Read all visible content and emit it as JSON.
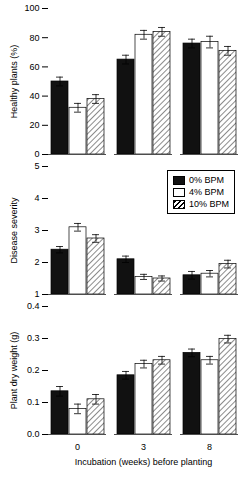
{
  "chart_data": [
    {
      "type": "bar",
      "categories": [
        "0",
        "3",
        "8"
      ],
      "ylabel": "Healthy plants (%)",
      "ylim": [
        0,
        100
      ],
      "yticks": [
        0,
        20,
        40,
        60,
        80,
        100
      ],
      "tick_labels": "y",
      "series": [
        {
          "name": "0% BPM",
          "color": "#111111",
          "values": [
            50,
            65,
            76
          ],
          "errors": [
            3,
            3,
            3
          ]
        },
        {
          "name": "4% BPM",
          "color": "#ffffff",
          "values": [
            32,
            82,
            77
          ],
          "errors": [
            3,
            3,
            4
          ]
        },
        {
          "name": "10% BPM",
          "color": "#ffffff",
          "values": [
            38,
            84,
            71
          ],
          "errors": [
            3,
            3,
            3
          ]
        }
      ]
    },
    {
      "type": "bar",
      "categories": [
        "0",
        "3",
        "8"
      ],
      "ylabel": "Disease severity",
      "ylim": [
        1,
        5
      ],
      "yticks": [
        1,
        2,
        3,
        4,
        5
      ],
      "tick_labels": "y",
      "legend": "upper right",
      "series": [
        {
          "name": "0% BPM",
          "color": "#111111",
          "values": [
            2.4,
            2.1,
            1.6
          ],
          "errors": [
            0.1,
            0.1,
            0.12
          ]
        },
        {
          "name": "4% BPM",
          "color": "#ffffff",
          "values": [
            3.1,
            1.55,
            1.65
          ],
          "errors": [
            0.12,
            0.08,
            0.1
          ]
        },
        {
          "name": "10% BPM",
          "color": "#ffffff",
          "values": [
            2.75,
            1.5,
            1.95
          ],
          "errors": [
            0.12,
            0.08,
            0.12
          ]
        }
      ]
    },
    {
      "type": "bar",
      "categories": [
        "0",
        "3",
        "8"
      ],
      "xlabel": "Incubation (weeks) before planting",
      "ylabel": "Plant dry weight (g)",
      "ylim": [
        0.0,
        0.4
      ],
      "yticks": [
        {
          "value": 0,
          "label": "0.0"
        },
        0.1,
        0.2,
        0.3,
        0.4
      ],
      "series": [
        {
          "name": "0% BPM",
          "color": "#111111",
          "values": [
            0.135,
            0.185,
            0.255
          ],
          "errors": [
            0.015,
            0.012,
            0.012
          ]
        },
        {
          "name": "4% BPM",
          "color": "#ffffff",
          "values": [
            0.08,
            0.22,
            0.232
          ],
          "errors": [
            0.015,
            0.012,
            0.012
          ]
        },
        {
          "name": "10% BPM",
          "color": "#ffffff",
          "values": [
            0.11,
            0.232,
            0.298
          ],
          "errors": [
            0.015,
            0.012,
            0.012
          ]
        }
      ]
    }
  ]
}
